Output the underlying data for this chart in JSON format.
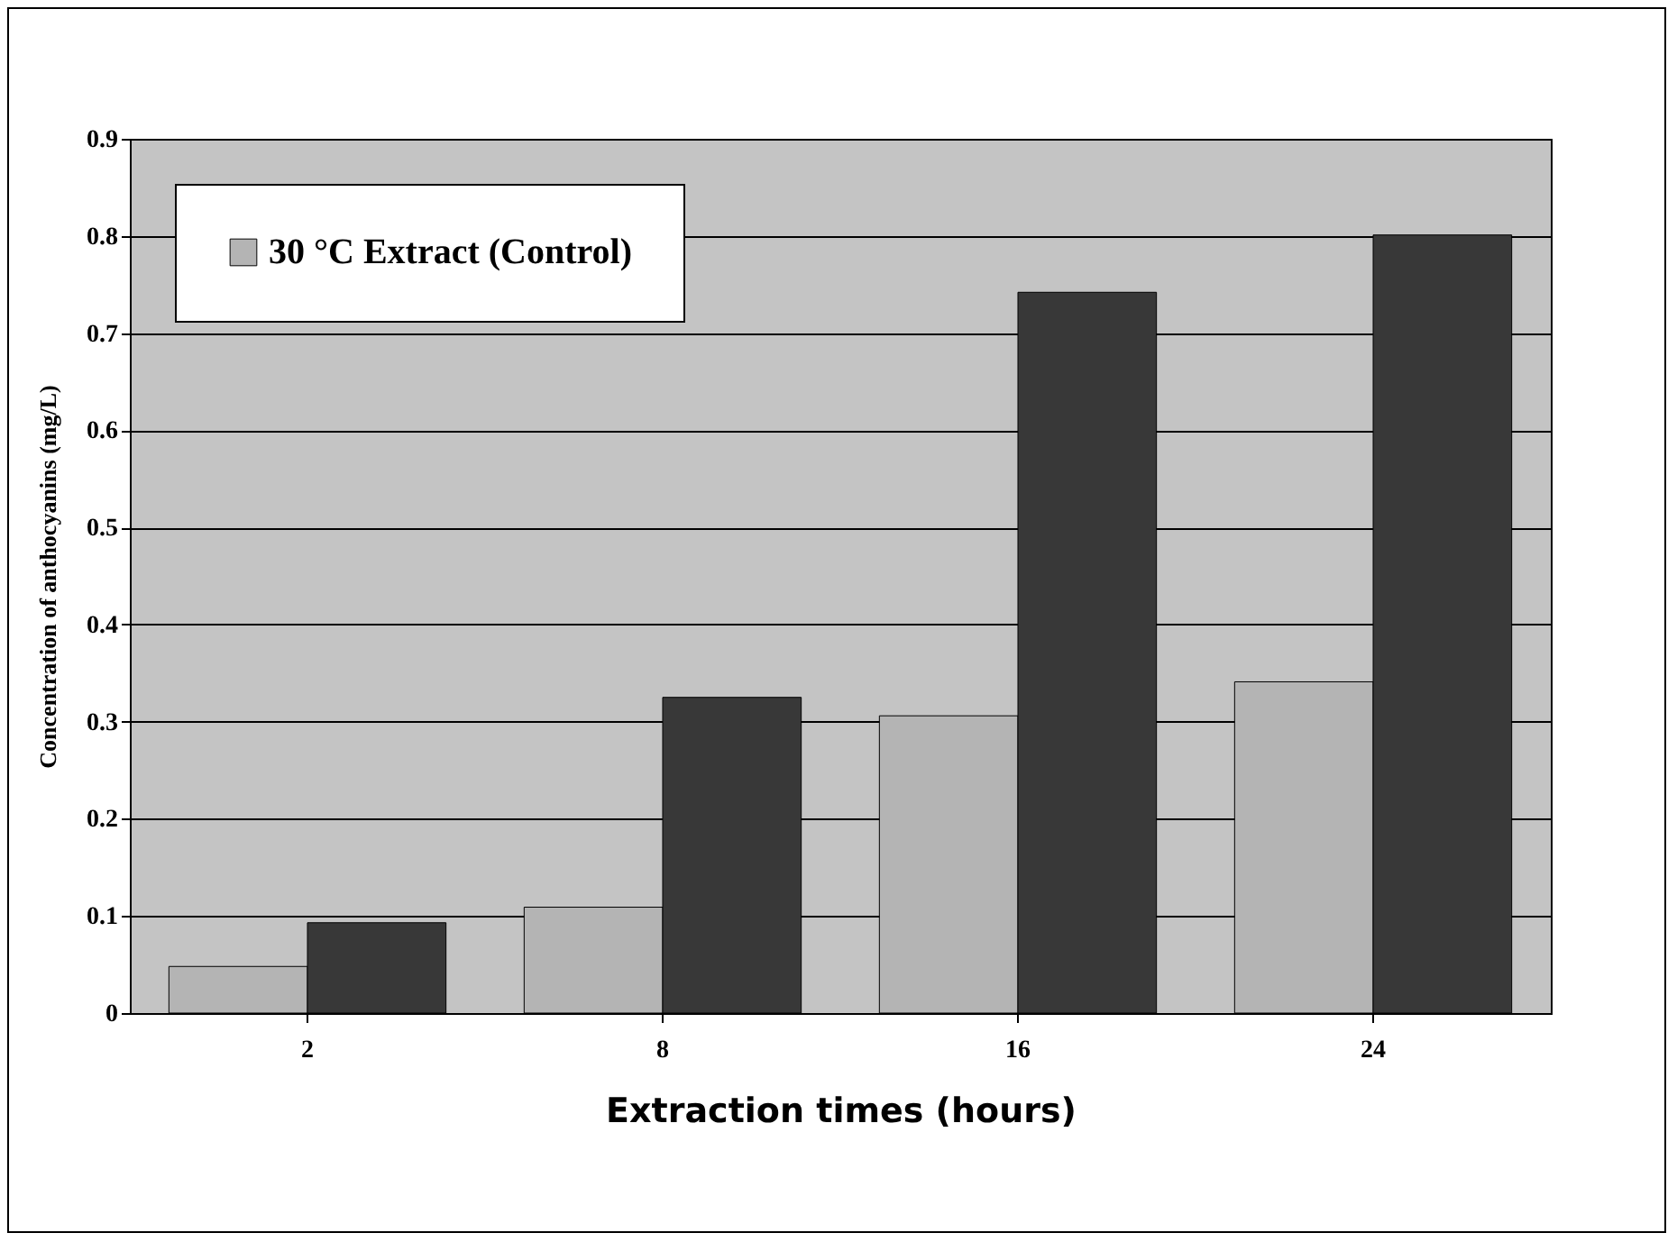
{
  "chart_data": {
    "type": "bar",
    "xlabel": "Extraction times (hours)",
    "ylabel": "Concentration of anthocyanins (mg/L)",
    "categories": [
      "2",
      "8",
      "16",
      "24"
    ],
    "series": [
      {
        "name": "30 °C Extract (Control)",
        "color": "#b4b4b4",
        "values": [
          0.048,
          0.109,
          0.306,
          0.341
        ]
      },
      {
        "color": "#383838",
        "values": [
          0.093,
          0.325,
          0.742,
          0.801
        ]
      }
    ],
    "ylim": [
      0,
      0.9
    ],
    "yticks": [
      0,
      0.1,
      0.2,
      0.3,
      0.4,
      0.5,
      0.6,
      0.7,
      0.8,
      0.9
    ],
    "grid": "y",
    "legend": "top left"
  }
}
